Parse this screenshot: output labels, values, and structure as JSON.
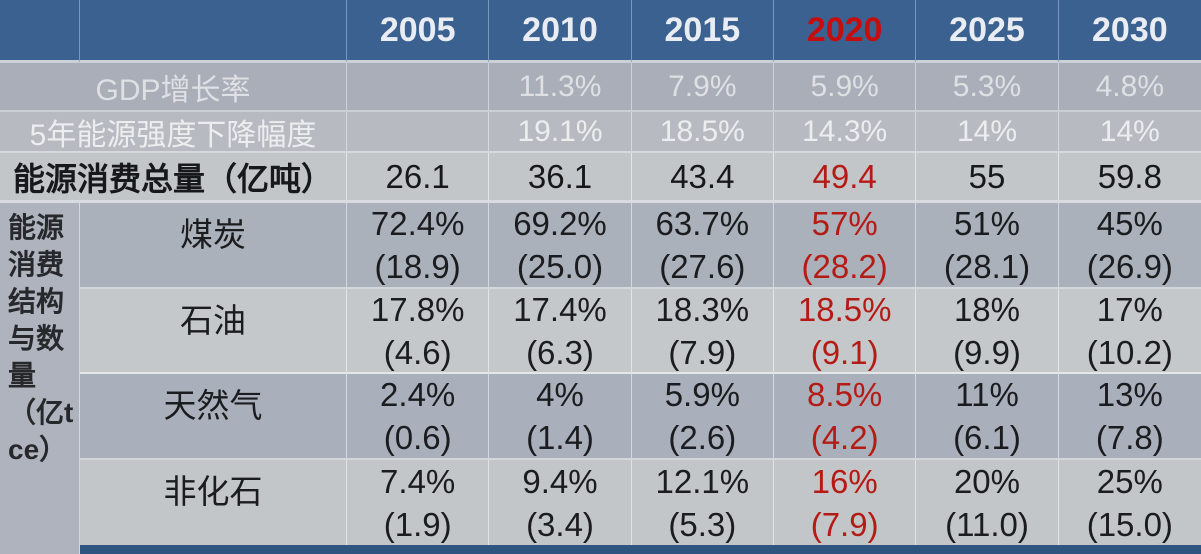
{
  "colors": {
    "header_bg": "#3a618f",
    "header_text": "#e9edf3",
    "highlight_red_header": "#c60d0d",
    "highlight_red_body": "#b41b15",
    "dark_text": "#1b1c1f",
    "bottom_bar": "#2e5480"
  },
  "table": {
    "years": [
      "2005",
      "2010",
      "2015",
      "2020",
      "2025",
      "2030"
    ],
    "highlighted_year": "2020",
    "info_rows": [
      {
        "label": "GDP增长率",
        "values": [
          "",
          "11.3%",
          "7.9%",
          "5.9%",
          "5.3%",
          "4.8%"
        ]
      },
      {
        "label": "5年能源强度下降幅度",
        "values": [
          "",
          "19.1%",
          "18.5%",
          "14.3%",
          "14%",
          "14%"
        ]
      },
      {
        "label": "能源消费总量（亿吨）",
        "values": [
          "26.1",
          "36.1",
          "43.4",
          "49.4",
          "55",
          "59.8"
        ]
      }
    ],
    "section_label": "能源消费结构与数量（亿tce）",
    "fuel_rows": [
      {
        "label": "煤炭",
        "pct": [
          "72.4%",
          "69.2%",
          "63.7%",
          "57%",
          "51%",
          "45%"
        ],
        "amt": [
          "(18.9)",
          "(25.0)",
          "(27.6)",
          "(28.2)",
          "(28.1)",
          "(26.9)"
        ]
      },
      {
        "label": "石油",
        "pct": [
          "17.8%",
          "17.4%",
          "18.3%",
          "18.5%",
          "18%",
          "17%"
        ],
        "amt": [
          "(4.6)",
          "(6.3)",
          "(7.9)",
          "(9.1)",
          "(9.9)",
          "(10.2)"
        ]
      },
      {
        "label": "天然气",
        "pct": [
          "2.4%",
          "4%",
          "5.9%",
          "8.5%",
          "11%",
          "13%"
        ],
        "amt": [
          "(0.6)",
          "(1.4)",
          "(2.6)",
          "(4.2)",
          "(6.1)",
          "(7.8)"
        ]
      },
      {
        "label": "非化石",
        "pct": [
          "7.4%",
          "9.4%",
          "12.1%",
          "16%",
          "20%",
          "25%"
        ],
        "amt": [
          "(1.9)",
          "(3.4)",
          "(5.3)",
          "(7.9)",
          "(11.0)",
          "(15.0)"
        ]
      }
    ]
  },
  "chart_data": {
    "type": "table",
    "columns": [
      "",
      "2005",
      "2010",
      "2015",
      "2020",
      "2025",
      "2030"
    ],
    "highlight_column": "2020",
    "rows": [
      [
        "GDP增长率",
        "",
        "11.3%",
        "7.9%",
        "5.9%",
        "5.3%",
        "4.8%"
      ],
      [
        "5年能源强度下降幅度",
        "",
        "19.1%",
        "18.5%",
        "14.3%",
        "14%",
        "14%"
      ],
      [
        "能源消费总量（亿吨）",
        "26.1",
        "36.1",
        "43.4",
        "49.4",
        "55",
        "59.8"
      ],
      [
        "能源消费结构与数量（亿tce） 煤炭",
        "72.4% (18.9)",
        "69.2% (25.0)",
        "63.7% (27.6)",
        "57% (28.2)",
        "51% (28.1)",
        "45% (26.9)"
      ],
      [
        "能源消费结构与数量（亿tce） 石油",
        "17.8% (4.6)",
        "17.4% (6.3)",
        "18.3% (7.9)",
        "18.5% (9.1)",
        "18% (9.9)",
        "17% (10.2)"
      ],
      [
        "能源消费结构与数量（亿tce） 天然气",
        "2.4% (0.6)",
        "4% (1.4)",
        "5.9% (2.6)",
        "8.5% (4.2)",
        "11% (6.1)",
        "13% (7.8)"
      ],
      [
        "能源消费结构与数量（亿tce） 非化石",
        "7.4% (1.9)",
        "9.4% (3.4)",
        "12.1% (5.3)",
        "16% (7.9)",
        "20% (11.0)",
        "25% (15.0)"
      ]
    ]
  }
}
